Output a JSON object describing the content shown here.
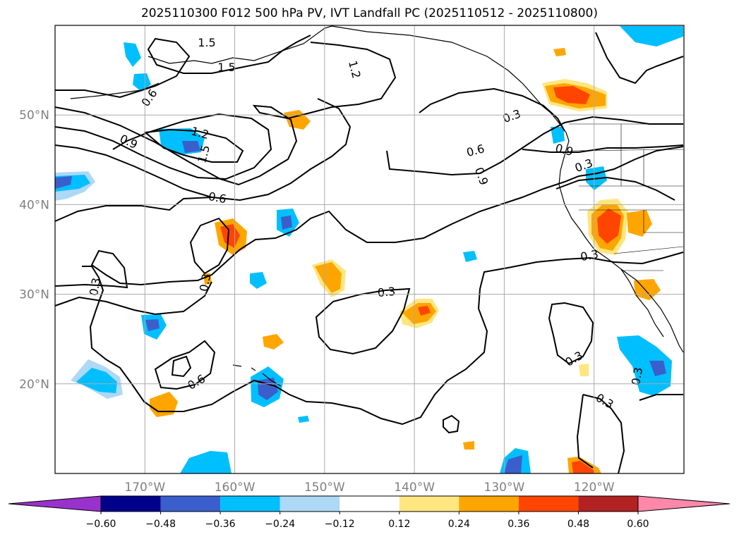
{
  "title": "2025110300 F012 500 hPa PV, IVT Landfall PC (2025110512 - 2025110800)",
  "map": {
    "lon_range": [
      -180,
      -110
    ],
    "lat_range": [
      10,
      60
    ],
    "lat_labels": [
      {
        "value": 50,
        "text": "50°N"
      },
      {
        "value": 40,
        "text": "40°N"
      },
      {
        "value": 30,
        "text": "30°N"
      },
      {
        "value": 20,
        "text": "20°N"
      }
    ],
    "lon_labels": [
      {
        "value": -170,
        "text": "170°W"
      },
      {
        "value": -160,
        "text": "160°W"
      },
      {
        "value": -150,
        "text": "150°W"
      },
      {
        "value": -140,
        "text": "140°W"
      },
      {
        "value": -130,
        "text": "130°W"
      },
      {
        "value": -120,
        "text": "120°W"
      }
    ],
    "grid_color": "#aaaaaa",
    "label_color": "#808080"
  },
  "contour_labels": [
    "1.5",
    "1.5",
    "1.2",
    "0.6",
    "1.2",
    "0.9",
    "1.5",
    "0.3",
    "0.6",
    "0.9",
    "0.9",
    "0.3",
    "0.6",
    "0.3",
    "0.3",
    "0.3",
    "0.6",
    "0.3",
    "0.3",
    "0.3",
    "0.3"
  ],
  "colorbar": {
    "colors": [
      "#9932cc",
      "#00008b",
      "#3a5fcd",
      "#00bfff",
      "#add8f6",
      "#ffffff",
      "#ffe680",
      "#ffa500",
      "#ff4500",
      "#b22222",
      "#ff88aa"
    ],
    "ticks": [
      "−0.60",
      "−0.48",
      "−0.36",
      "−0.24",
      "−0.12",
      "0.12",
      "0.24",
      "0.36",
      "0.48",
      "0.60"
    ]
  }
}
